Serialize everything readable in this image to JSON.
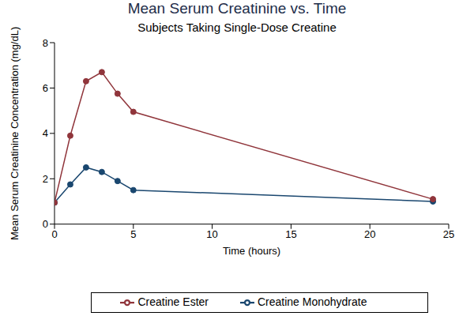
{
  "chart_data": {
    "type": "line",
    "title": "Mean Serum Creatinine vs. Time",
    "subtitle": "Subjects Taking Single-Dose Creatine",
    "x_label": "Time (hours)",
    "y_label": "Mean Serum Creatinine Concentration (mg/dL)",
    "x": [
      0,
      1,
      2,
      3,
      4,
      5,
      24
    ],
    "series": [
      {
        "name": "Creatine Monohydrate",
        "color": "#1a476f",
        "values": [
          0.95,
          1.75,
          2.5,
          2.3,
          1.9,
          1.5,
          1.0
        ]
      },
      {
        "name": "Creatine Ester",
        "color": "#90353b",
        "values": [
          0.95,
          3.9,
          6.3,
          6.7,
          5.75,
          4.95,
          1.1
        ]
      }
    ],
    "xlim": [
      0,
      25
    ],
    "xticks": [
      0,
      5,
      10,
      15,
      20,
      25
    ],
    "ylim": [
      0,
      8
    ],
    "yticks": [
      0,
      2,
      4,
      6,
      8
    ],
    "grid": false,
    "marker": "circle",
    "legend": "bottom"
  }
}
